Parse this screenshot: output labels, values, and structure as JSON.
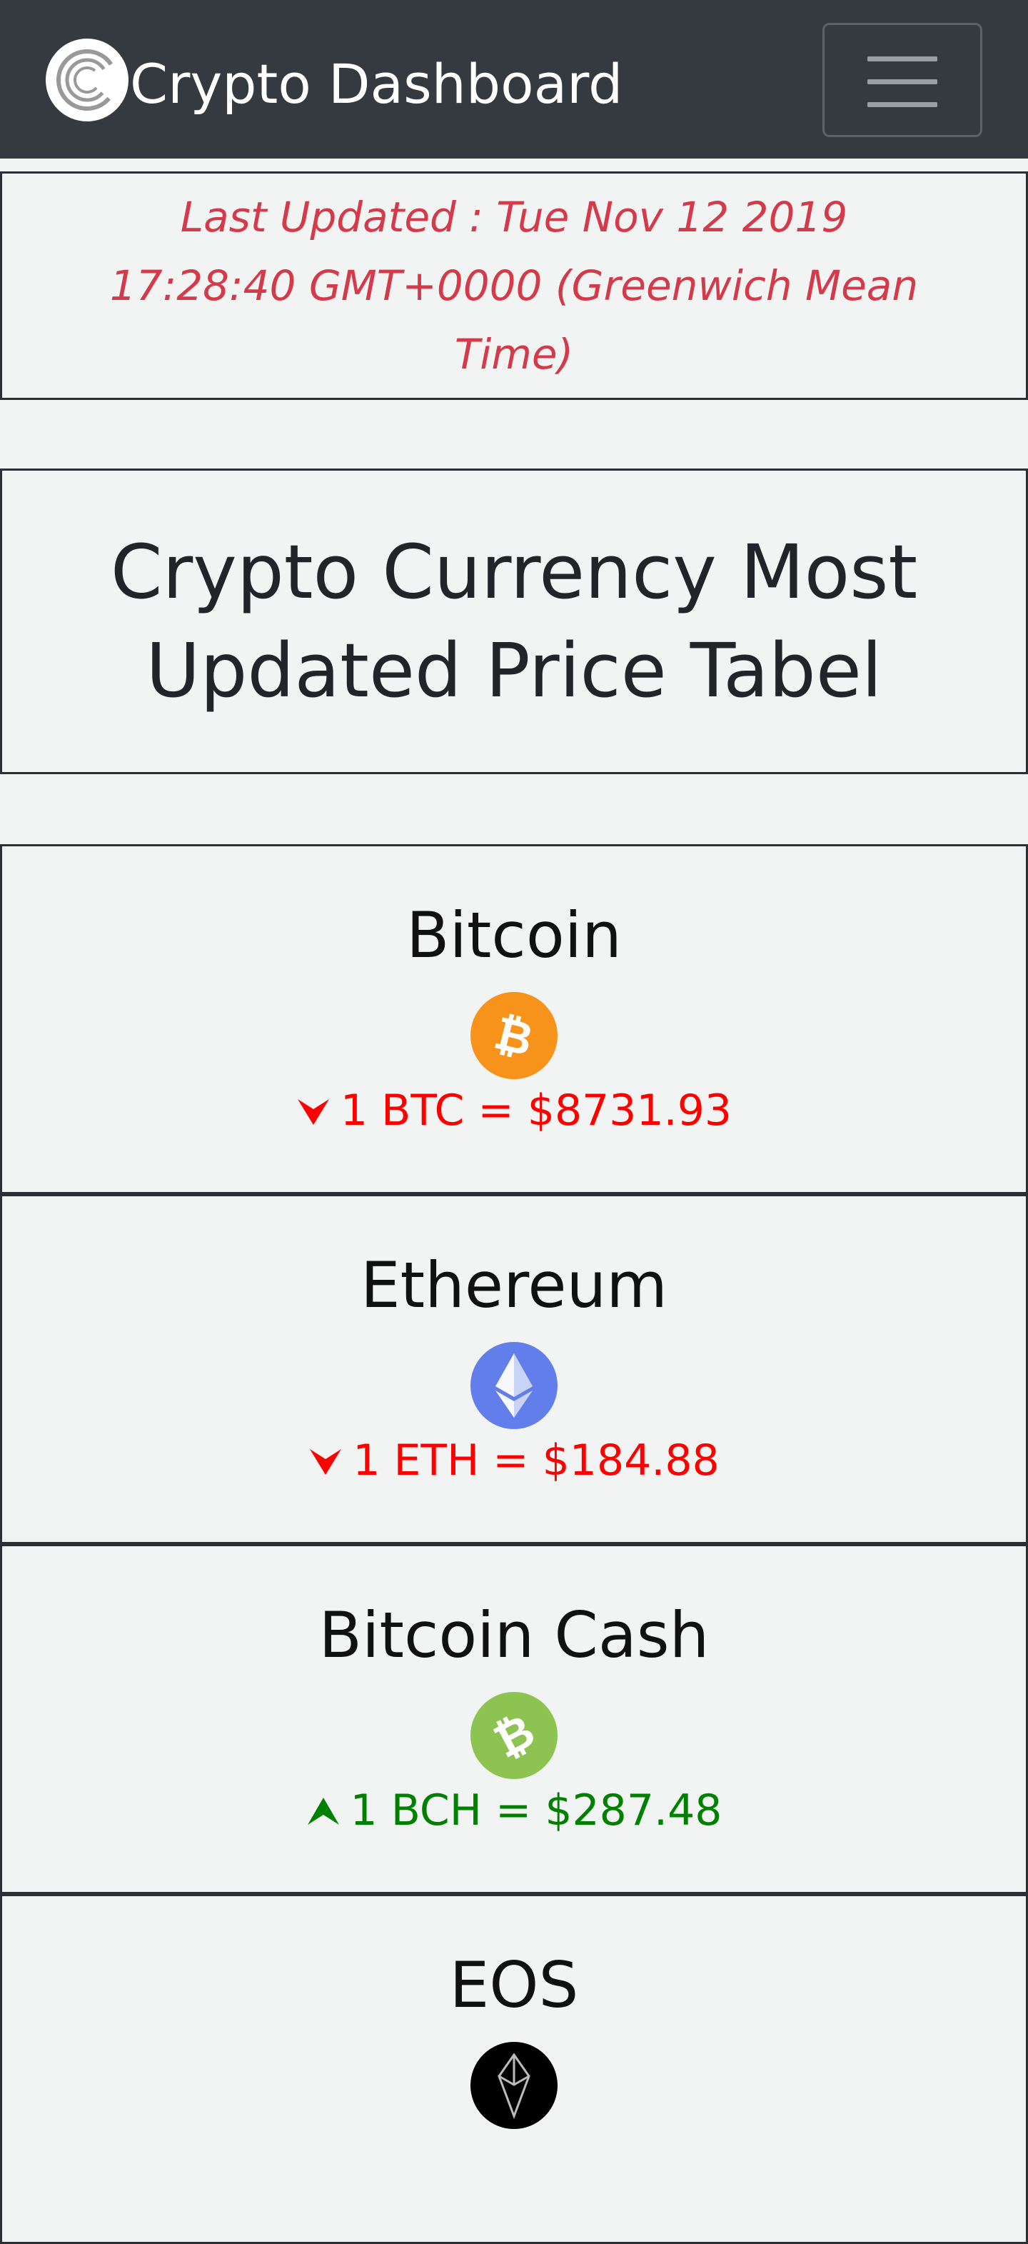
{
  "navbar": {
    "brand_title": "Crypto Dashboard",
    "menu_icon": "hamburger-icon"
  },
  "status": {
    "last_updated": "Last Updated : Tue Nov 12 2019 17:28:40 GMT+0000 (Greenwich Mean Time)"
  },
  "page": {
    "heading": "Crypto Currency Most Updated Price Tabel"
  },
  "coins": [
    {
      "name": "Bitcoin",
      "price_text": "1 BTC = $8731.93",
      "trend": "down",
      "icon": "bitcoin-icon",
      "color": "#f7931a"
    },
    {
      "name": "Ethereum",
      "price_text": "1 ETH = $184.88",
      "trend": "down",
      "icon": "ethereum-icon",
      "color": "#627eea"
    },
    {
      "name": "Bitcoin Cash",
      "price_text": "1 BCH = $287.48",
      "trend": "up",
      "icon": "bitcoin-cash-icon",
      "color": "#8dc351"
    },
    {
      "name": "EOS",
      "price_text": "",
      "trend": "",
      "icon": "eos-icon",
      "color": "#000000"
    }
  ],
  "colors": {
    "navbar_bg": "#343a40",
    "price_down": "#ff0000",
    "price_up": "#008000",
    "updated_text": "#d33a4a"
  }
}
